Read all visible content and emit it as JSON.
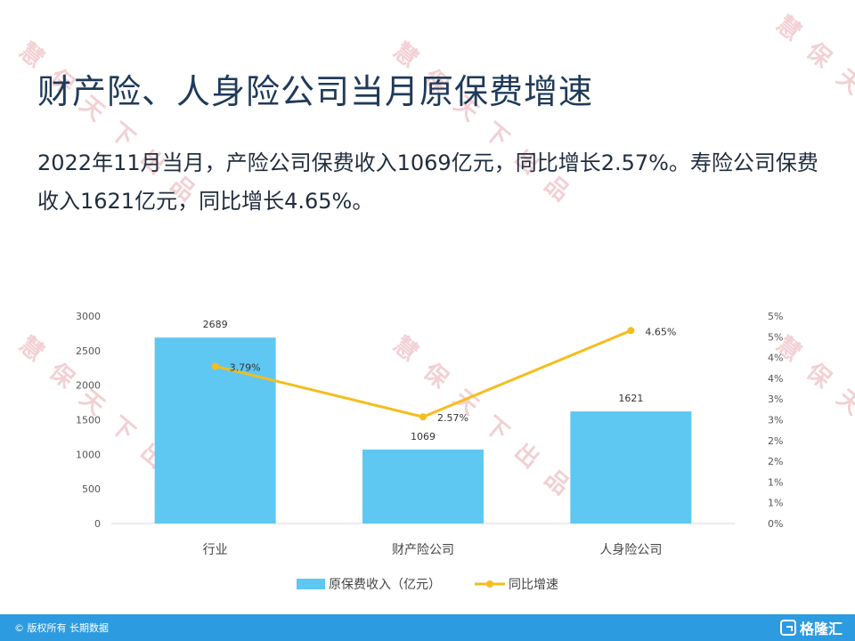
{
  "title": "财产险、人身险公司当月原保费增速",
  "description": "2022年11月当月，产险公司保费收入1069亿元，同比增长2.57%。寿险公司保费收入1621亿元，同比增长4.65%。",
  "watermark": {
    "text": "慧保天下出品",
    "color": "#e8aab0"
  },
  "footer": {
    "copyright": "© 版权所有 长期数据",
    "brand": "格隆汇",
    "bar_color": "#2d9be0"
  },
  "chart_data": {
    "type": "bar",
    "categories": [
      "行业",
      "财产险公司",
      "人身险公司"
    ],
    "series": [
      {
        "name": "原保费收入（亿元）",
        "type": "bar",
        "axis": "left",
        "color": "#5ec8f2",
        "values": [
          2689,
          1069,
          1621
        ],
        "labels": [
          "2689",
          "1069",
          "1621"
        ]
      },
      {
        "name": "同比增速",
        "type": "line",
        "axis": "right",
        "color": "#f5bd1f",
        "values": [
          3.79,
          2.57,
          4.65
        ],
        "labels": [
          "3.79%",
          "2.57%",
          "4.65%"
        ]
      }
    ],
    "left_axis": {
      "ylim": [
        0,
        3000
      ],
      "ticks": [
        "0",
        "500",
        "1000",
        "1500",
        "2000",
        "2500",
        "3000"
      ]
    },
    "right_axis": {
      "ylim": [
        0,
        5
      ],
      "ticks": [
        "0%",
        "1%",
        "1%",
        "2%",
        "2%",
        "3%",
        "3%",
        "4%",
        "4%",
        "5%",
        "5%"
      ]
    },
    "grid": false,
    "legend": "bottom"
  }
}
